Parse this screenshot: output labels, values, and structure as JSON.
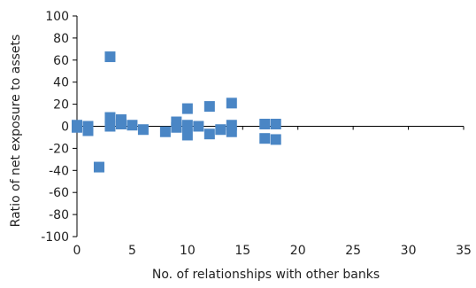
{
  "chart_data": {
    "type": "scatter",
    "title": "",
    "xlabel": "No. of relationships with other banks",
    "ylabel": "Ratio of net exposure to assets",
    "xlim": [
      0,
      35
    ],
    "ylim": [
      -100,
      100
    ],
    "x_ticks": [
      "0",
      "5",
      "10",
      "15",
      "20",
      "25",
      "30",
      "35"
    ],
    "y_ticks": [
      "100",
      "80",
      "60",
      "40",
      "20",
      "0",
      "-20",
      "-40",
      "-60",
      "-80",
      "-100"
    ],
    "grid": false,
    "marker_color": "#4a86c5",
    "series": [
      {
        "points": [
          [
            0,
            1
          ],
          [
            0,
            -1
          ],
          [
            1,
            0
          ],
          [
            1,
            -4
          ],
          [
            2,
            -37
          ],
          [
            3,
            63
          ],
          [
            3,
            8
          ],
          [
            3,
            0
          ],
          [
            4,
            6
          ],
          [
            4,
            2
          ],
          [
            5,
            1
          ],
          [
            6,
            -3
          ],
          [
            8,
            -5
          ],
          [
            9,
            4
          ],
          [
            9,
            -1
          ],
          [
            10,
            16
          ],
          [
            10,
            1
          ],
          [
            10,
            -8
          ],
          [
            11,
            0
          ],
          [
            12,
            18
          ],
          [
            12,
            -7
          ],
          [
            13,
            -3
          ],
          [
            14,
            21
          ],
          [
            14,
            1
          ],
          [
            14,
            -5
          ],
          [
            17,
            2
          ],
          [
            17,
            -11
          ],
          [
            18,
            2
          ],
          [
            18,
            -12
          ]
        ]
      }
    ]
  }
}
